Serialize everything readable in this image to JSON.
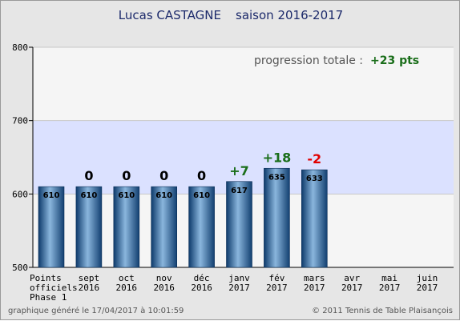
{
  "header": {
    "player": "Lucas CASTAGNE",
    "season": "saison 2016-2017"
  },
  "progression": {
    "label": "progression totale :",
    "value": "+23 pts"
  },
  "footer": {
    "generated": "graphique généré le 17/04/2017 à 10:01:59",
    "copyright": "© 2011 Tennis de Table Plaisançois"
  },
  "colors": {
    "background": "#e6e6e6",
    "plot_area": "#f5f5f5",
    "highlight_band": "#dbe1ff",
    "bar": "#1f5c99",
    "positive": "#1a6e1a",
    "negative": "#e00000",
    "neutral": "#000000"
  },
  "chart_data": {
    "type": "bar",
    "title": "Lucas CASTAGNE    saison 2016-2017",
    "categories": [
      [
        "Points",
        "officiels",
        "Phase 1"
      ],
      [
        "sept",
        "2016"
      ],
      [
        "oct",
        "2016"
      ],
      [
        "nov",
        "2016"
      ],
      [
        "déc",
        "2016"
      ],
      [
        "janv",
        "2017"
      ],
      [
        "fév",
        "2017"
      ],
      [
        "mars",
        "2017"
      ],
      [
        "avr",
        "2017"
      ],
      [
        "mai",
        "2017"
      ],
      [
        "juin",
        "2017"
      ]
    ],
    "values": [
      610,
      610,
      610,
      610,
      610,
      617,
      635,
      633,
      null,
      null,
      null
    ],
    "deltas": [
      null,
      "0",
      "0",
      "0",
      "0",
      "+7",
      "+18",
      "-2",
      null,
      null,
      null
    ],
    "ylim": [
      500,
      800
    ],
    "yticks": [
      500,
      600,
      700,
      800
    ],
    "highlight_band": [
      600,
      700
    ],
    "grid": true,
    "legend": false
  }
}
